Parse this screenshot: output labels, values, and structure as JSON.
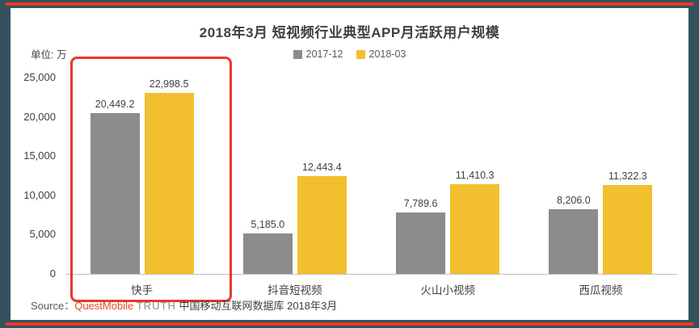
{
  "frame": {
    "border_color": "#34525E",
    "accent_line_color": "#E8392B"
  },
  "chart_data": {
    "type": "bar",
    "title": "2018年3月 短视频行业典型APP月活跃用户规模",
    "unit_label": "单位: 万",
    "categories": [
      "快手",
      "抖音短视频",
      "火山小视频",
      "西瓜视频"
    ],
    "series": [
      {
        "name": "2017-12",
        "color": "#8C8C8C",
        "values": [
          20449.2,
          5185.0,
          7789.6,
          8206.0
        ]
      },
      {
        "name": "2018-03",
        "color": "#F2C02E",
        "values": [
          22998.5,
          12443.4,
          11410.3,
          11322.3
        ]
      }
    ],
    "value_labels": [
      [
        "20,449.2",
        "5,185.0",
        "7,789.6",
        "8,206.0"
      ],
      [
        "22,998.5",
        "12,443.4",
        "11,410.3",
        "11,322.3"
      ]
    ],
    "xlabel": "",
    "ylabel": "",
    "ylim": [
      0,
      25000
    ],
    "yticks": [
      0,
      5000,
      10000,
      15000,
      20000,
      25000
    ],
    "ytick_labels": [
      "0",
      "5,000",
      "10,000",
      "15,000",
      "20,000",
      "25,000"
    ],
    "grid": false,
    "legend_position": "top-center",
    "highlight": {
      "category": "快手",
      "color": "#E8392B"
    }
  },
  "source": {
    "prefix": "Source：",
    "brand": "QuestMobile",
    "product": "TRUTH",
    "rest": "中国移动互联网数据库 2018年3月"
  }
}
